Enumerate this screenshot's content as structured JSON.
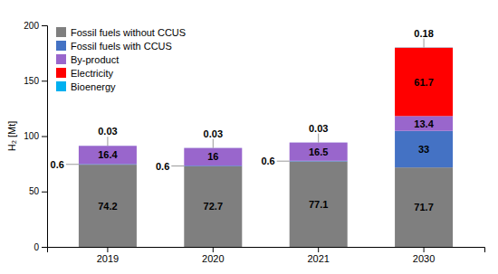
{
  "chart_data": {
    "type": "bar",
    "stacked": true,
    "data_labels": true,
    "grid": false,
    "legend": "upper left",
    "categories": [
      "2019",
      "2020",
      "2021",
      "2030"
    ],
    "series": [
      {
        "name": "Fossil fuels without CCUS",
        "color": "#7f7f7f",
        "values": [
          74.2,
          72.7,
          77.1,
          71.7
        ]
      },
      {
        "name": "Fossil fuels with CCUS",
        "color": "#4472C4",
        "values": [
          0.6,
          0.6,
          0.6,
          33.0
        ]
      },
      {
        "name": "By-product",
        "color": "#9966CC",
        "values": [
          16.4,
          16.0,
          16.5,
          13.4
        ]
      },
      {
        "name": "Electricity",
        "color": "#FF0000",
        "values": [
          0.0,
          0.0,
          0.0,
          61.7
        ],
        "value_labels": [
          null,
          null,
          null,
          "61.7"
        ]
      },
      {
        "name": "Bioenergy",
        "color": "#00B0F0",
        "values": [
          0.03,
          0.03,
          0.03,
          0.18
        ]
      }
    ],
    "y_label": "H₂ [Mt]",
    "ylim": [
      0,
      200
    ],
    "yticks": [
      0,
      50,
      100,
      150,
      200
    ]
  }
}
